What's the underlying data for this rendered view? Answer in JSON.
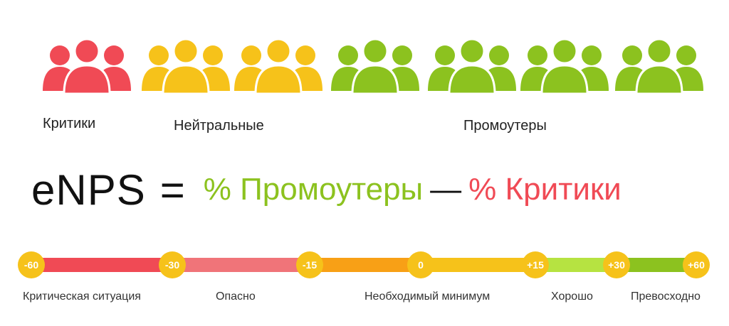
{
  "colors": {
    "critic": "#f04a55",
    "neutral": "#f6c21a",
    "promoter": "#8cc21f",
    "text": "#222222"
  },
  "groups": [
    {
      "type": "critic",
      "icon": "people-group-icon"
    },
    {
      "type": "neutral",
      "icon": "people-group-icon"
    },
    {
      "type": "neutral",
      "icon": "people-group-icon"
    },
    {
      "type": "promoter",
      "icon": "people-group-icon"
    },
    {
      "type": "promoter",
      "icon": "people-group-icon"
    },
    {
      "type": "promoter",
      "icon": "people-group-icon"
    },
    {
      "type": "promoter",
      "icon": "people-group-icon"
    }
  ],
  "labels": {
    "critics": "Критики",
    "neutrals": "Нейтральные",
    "promoters": "Промоутеры"
  },
  "formula": {
    "base": "eNPS",
    "equals": "=",
    "promoters": "% Промоутеры",
    "minus": "—",
    "critics": "% Критики"
  },
  "scale": {
    "ticks": [
      "-60",
      "-30",
      "-15",
      "0",
      "+15",
      "+30",
      "+60"
    ],
    "segment_colors": [
      "#f04a55",
      "#f07479",
      "#f8a016",
      "#f6c21a",
      "#b6e341",
      "#8cc21f"
    ],
    "zones": [
      "Критическая ситуация",
      "Опасно",
      "Необходимый минимум",
      "Хорошо",
      "Превосходно"
    ]
  }
}
